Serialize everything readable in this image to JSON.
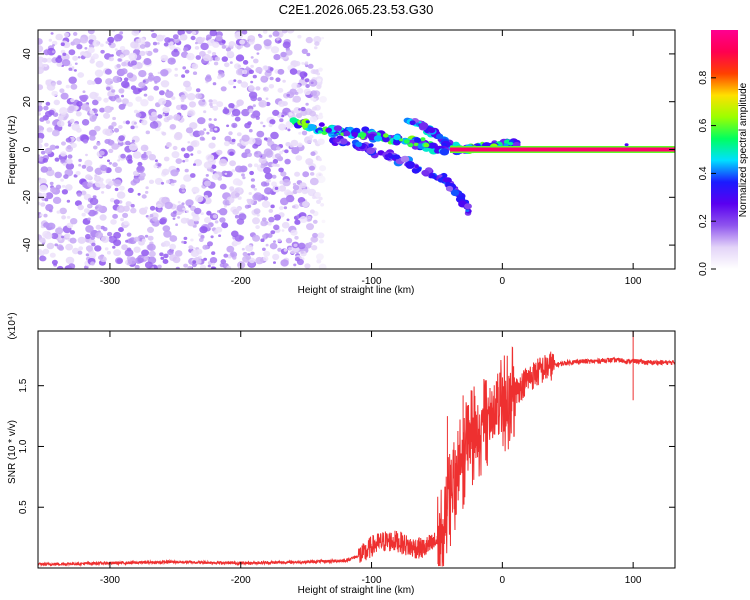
{
  "figure_title": "C2E1.2026.065.23.53.G30",
  "chart_data": [
    {
      "type": "heatmap",
      "title": "C2E1.2026.065.23.53.G30",
      "xlabel": "Height of straight line (km)",
      "ylabel": "Frequency (Hz)",
      "xlim": [
        -355,
        132
      ],
      "ylim": [
        -50,
        50
      ],
      "xticks": [
        -300,
        -200,
        -100,
        0,
        100
      ],
      "yticks": [
        -40,
        -20,
        0,
        20,
        40
      ],
      "colorbar": {
        "label": "Normalized spectral amplitude",
        "range": [
          0.0,
          1.0
        ],
        "ticks": [
          0.0,
          0.2,
          0.4,
          0.6,
          0.8
        ],
        "stops": [
          "#ffffff",
          "#e3d3f8",
          "#8f55ee",
          "#5a00f0",
          "#1b1bff",
          "#00e0ff",
          "#00ff60",
          "#9cff00",
          "#ffe000",
          "#ff4000",
          "#ff0050",
          "#ff0090"
        ]
      },
      "features": [
        {
          "name": "noise-region",
          "x_range": [
            -355,
            -135
          ],
          "y_range": [
            -50,
            50
          ],
          "amplitude": 0.15
        },
        {
          "name": "main-branch",
          "points": [
            [
              -160,
              12
            ],
            [
              -140,
              9
            ],
            [
              -120,
              7
            ],
            [
              -100,
              6
            ],
            [
              -80,
              4
            ],
            [
              -60,
              2
            ],
            [
              -45,
              0
            ],
            [
              -30,
              0
            ],
            [
              -20,
              1
            ],
            [
              0,
              2
            ],
            [
              12,
              2
            ]
          ],
          "amplitude": 0.45
        },
        {
          "name": "lower-branch",
          "points": [
            [
              -130,
              4
            ],
            [
              -110,
              2
            ],
            [
              -90,
              -2
            ],
            [
              -75,
              -5
            ],
            [
              -60,
              -9
            ],
            [
              -45,
              -12
            ],
            [
              -35,
              -18
            ],
            [
              -25,
              -26
            ]
          ],
          "amplitude": 0.3
        },
        {
          "name": "upper-branch",
          "points": [
            [
              -75,
              13
            ],
            [
              -65,
              11
            ],
            [
              -55,
              8
            ],
            [
              -45,
              4
            ],
            [
              -40,
              1
            ]
          ],
          "amplitude": 0.35
        },
        {
          "name": "carrier-line",
          "x_range": [
            -40,
            132
          ],
          "frequency": 0,
          "amplitude": 0.95
        }
      ]
    },
    {
      "type": "line",
      "xlabel": "Height of straight line (km)",
      "ylabel": "SNR (10 * v/v)",
      "y_multiplier": "(x10⁴)",
      "xlim": [
        -355,
        132
      ],
      "ylim": [
        0,
        1.95
      ],
      "xticks": [
        -300,
        -200,
        -100,
        0,
        100
      ],
      "yticks": [
        0.5,
        1.0,
        1.5
      ],
      "color": "#ee3030",
      "series": [
        {
          "name": "SNR",
          "x": [
            -355,
            -300,
            -250,
            -200,
            -150,
            -120,
            -105,
            -100,
            -90,
            -80,
            -70,
            -60,
            -50,
            -45,
            -40,
            -35,
            -30,
            -25,
            -20,
            -15,
            -10,
            -5,
            0,
            5,
            10,
            20,
            30,
            40,
            50,
            60,
            70,
            80,
            90,
            95,
            100,
            105,
            110,
            120,
            132
          ],
          "y": [
            0.03,
            0.04,
            0.05,
            0.04,
            0.05,
            0.06,
            0.12,
            0.18,
            0.22,
            0.22,
            0.17,
            0.16,
            0.22,
            0.38,
            0.55,
            0.72,
            0.9,
            1.02,
            1.12,
            1.18,
            1.2,
            1.26,
            1.32,
            1.38,
            1.45,
            1.56,
            1.63,
            1.67,
            1.69,
            1.7,
            1.7,
            1.71,
            1.71,
            1.7,
            1.7,
            1.7,
            1.69,
            1.69,
            1.69
          ],
          "spikes": [
            [
              100,
              1.98
            ],
            [
              100,
              1.38
            ],
            [
              37,
              1.78
            ],
            [
              -8,
              1.44
            ],
            [
              -42,
              1.25
            ],
            [
              -30,
              1.42
            ]
          ]
        }
      ]
    }
  ]
}
